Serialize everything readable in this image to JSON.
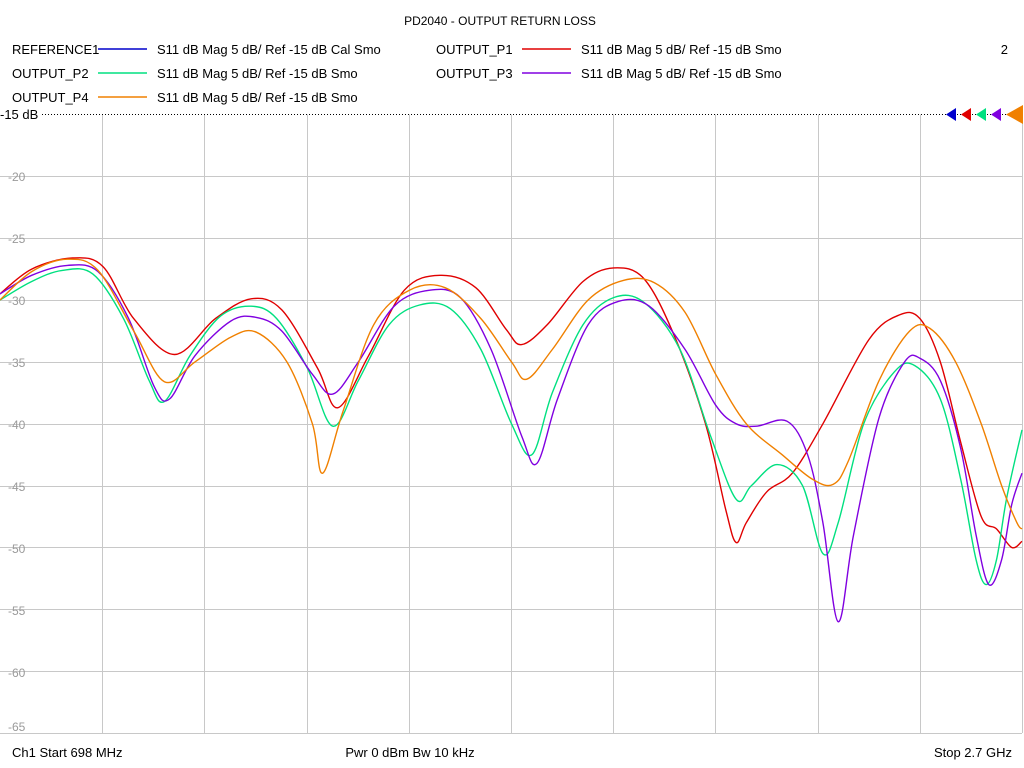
{
  "chart_data": {
    "type": "line",
    "title": "PD2040 - OUTPUT RETURN LOSS",
    "channel_number": "2",
    "reference_level_label": "-15 dB",
    "y_tick_labels": [
      "-20",
      "-25",
      "-30",
      "-35",
      "-40",
      "-45",
      "-50",
      "-55",
      "-60",
      "-65"
    ],
    "ylim": [
      -65,
      -15
    ],
    "xlim": [
      698,
      2700
    ],
    "x_unit": "MHz",
    "grid": true,
    "footer": {
      "start": "Ch1  Start  698 MHz",
      "power": "Pwr  0 dBm  Bw  10 kHz",
      "stop": "Stop  2.7 GHz"
    },
    "series": [
      {
        "name": "REFERENCE1",
        "descriptor": "S11  dB Mag  5 dB/ Ref -15 dB  Cal Smo",
        "color": "#0000cc",
        "points": []
      },
      {
        "name": "OUTPUT_P1",
        "descriptor": "S11  dB Mag  5 dB/ Ref -15 dB  Smo",
        "color": "#e00000",
        "points": [
          [
            698,
            -29.5
          ],
          [
            760,
            -27.5
          ],
          [
            840,
            -26.6
          ],
          [
            900,
            -27.3
          ],
          [
            960,
            -31.5
          ],
          [
            1040,
            -34.4
          ],
          [
            1120,
            -31.5
          ],
          [
            1190,
            -29.9
          ],
          [
            1250,
            -30.8
          ],
          [
            1320,
            -35.5
          ],
          [
            1360,
            -38.7
          ],
          [
            1420,
            -34.5
          ],
          [
            1490,
            -29.2
          ],
          [
            1560,
            -28.0
          ],
          [
            1630,
            -29.0
          ],
          [
            1690,
            -32.4
          ],
          [
            1720,
            -33.6
          ],
          [
            1770,
            -32.0
          ],
          [
            1840,
            -28.5
          ],
          [
            1900,
            -27.4
          ],
          [
            1960,
            -28.3
          ],
          [
            2020,
            -33.0
          ],
          [
            2080,
            -40.0
          ],
          [
            2120,
            -47.0
          ],
          [
            2140,
            -49.6
          ],
          [
            2160,
            -48.0
          ],
          [
            2200,
            -45.5
          ],
          [
            2250,
            -44.0
          ],
          [
            2310,
            -40.0
          ],
          [
            2400,
            -33.2
          ],
          [
            2460,
            -31.2
          ],
          [
            2500,
            -31.5
          ],
          [
            2540,
            -35.0
          ],
          [
            2580,
            -41.5
          ],
          [
            2620,
            -47.5
          ],
          [
            2650,
            -48.5
          ],
          [
            2680,
            -50.0
          ],
          [
            2700,
            -49.5
          ]
        ]
      },
      {
        "name": "OUTPUT_P2",
        "descriptor": "S11  dB Mag  5 dB/ Ref -15 dB  Smo",
        "color": "#00e080",
        "points": [
          [
            698,
            -30.0
          ],
          [
            760,
            -28.5
          ],
          [
            820,
            -27.6
          ],
          [
            880,
            -27.9
          ],
          [
            940,
            -31.5
          ],
          [
            990,
            -36.5
          ],
          [
            1020,
            -38.2
          ],
          [
            1070,
            -34.5
          ],
          [
            1130,
            -31.3
          ],
          [
            1190,
            -30.5
          ],
          [
            1240,
            -31.5
          ],
          [
            1300,
            -35.5
          ],
          [
            1350,
            -40.2
          ],
          [
            1400,
            -36.5
          ],
          [
            1460,
            -32.0
          ],
          [
            1520,
            -30.4
          ],
          [
            1580,
            -30.7
          ],
          [
            1640,
            -34.0
          ],
          [
            1700,
            -40.0
          ],
          [
            1740,
            -42.5
          ],
          [
            1780,
            -37.5
          ],
          [
            1840,
            -32.0
          ],
          [
            1900,
            -29.8
          ],
          [
            1960,
            -30.2
          ],
          [
            2030,
            -34.0
          ],
          [
            2090,
            -41.0
          ],
          [
            2140,
            -46.1
          ],
          [
            2170,
            -45.0
          ],
          [
            2220,
            -43.3
          ],
          [
            2270,
            -45.0
          ],
          [
            2310,
            -50.5
          ],
          [
            2340,
            -48.0
          ],
          [
            2390,
            -40.0
          ],
          [
            2450,
            -35.8
          ],
          [
            2490,
            -35.3
          ],
          [
            2540,
            -38.0
          ],
          [
            2580,
            -44.5
          ],
          [
            2610,
            -51.0
          ],
          [
            2630,
            -53.0
          ],
          [
            2650,
            -51.0
          ],
          [
            2670,
            -46.0
          ],
          [
            2700,
            -40.5
          ]
        ]
      },
      {
        "name": "OUTPUT_P3",
        "descriptor": "S11  dB Mag  5 dB/ Ref -15 dB  Smo",
        "color": "#8000e0",
        "points": [
          [
            698,
            -29.5
          ],
          [
            760,
            -28.0
          ],
          [
            830,
            -27.2
          ],
          [
            890,
            -27.7
          ],
          [
            950,
            -31.5
          ],
          [
            1000,
            -37.0
          ],
          [
            1030,
            -38.0
          ],
          [
            1080,
            -34.5
          ],
          [
            1150,
            -31.7
          ],
          [
            1200,
            -31.4
          ],
          [
            1250,
            -32.5
          ],
          [
            1310,
            -36.0
          ],
          [
            1350,
            -37.6
          ],
          [
            1400,
            -35.0
          ],
          [
            1470,
            -30.5
          ],
          [
            1540,
            -29.2
          ],
          [
            1600,
            -29.8
          ],
          [
            1660,
            -34.0
          ],
          [
            1720,
            -41.0
          ],
          [
            1750,
            -43.2
          ],
          [
            1790,
            -38.0
          ],
          [
            1850,
            -32.0
          ],
          [
            1910,
            -30.1
          ],
          [
            1970,
            -30.5
          ],
          [
            2040,
            -34.0
          ],
          [
            2100,
            -38.5
          ],
          [
            2140,
            -40.0
          ],
          [
            2180,
            -40.2
          ],
          [
            2240,
            -39.8
          ],
          [
            2280,
            -42.5
          ],
          [
            2310,
            -48.0
          ],
          [
            2340,
            -56.0
          ],
          [
            2370,
            -49.0
          ],
          [
            2420,
            -39.5
          ],
          [
            2470,
            -35.0
          ],
          [
            2500,
            -34.7
          ],
          [
            2540,
            -36.5
          ],
          [
            2580,
            -42.0
          ],
          [
            2610,
            -49.0
          ],
          [
            2635,
            -53.0
          ],
          [
            2660,
            -51.0
          ],
          [
            2680,
            -46.5
          ],
          [
            2700,
            -44.0
          ]
        ]
      },
      {
        "name": "OUTPUT_P4",
        "descriptor": "S11  dB Mag  5 dB/ Ref -15 dB  Smo",
        "color": "#f08000",
        "points": [
          [
            698,
            -30.0
          ],
          [
            760,
            -27.7
          ],
          [
            830,
            -26.7
          ],
          [
            890,
            -27.6
          ],
          [
            960,
            -32.5
          ],
          [
            1020,
            -36.6
          ],
          [
            1080,
            -35.0
          ],
          [
            1150,
            -33.0
          ],
          [
            1200,
            -32.6
          ],
          [
            1260,
            -35.0
          ],
          [
            1310,
            -40.0
          ],
          [
            1330,
            -44.0
          ],
          [
            1370,
            -39.0
          ],
          [
            1430,
            -32.0
          ],
          [
            1500,
            -29.2
          ],
          [
            1570,
            -29.0
          ],
          [
            1640,
            -31.5
          ],
          [
            1700,
            -35.0
          ],
          [
            1730,
            -36.4
          ],
          [
            1780,
            -34.0
          ],
          [
            1850,
            -30.0
          ],
          [
            1920,
            -28.4
          ],
          [
            1980,
            -28.6
          ],
          [
            2040,
            -31.0
          ],
          [
            2100,
            -36.0
          ],
          [
            2160,
            -40.0
          ],
          [
            2230,
            -42.5
          ],
          [
            2290,
            -44.5
          ],
          [
            2330,
            -44.9
          ],
          [
            2360,
            -43.0
          ],
          [
            2420,
            -36.5
          ],
          [
            2480,
            -32.5
          ],
          [
            2520,
            -32.3
          ],
          [
            2570,
            -35.0
          ],
          [
            2620,
            -40.0
          ],
          [
            2660,
            -45.0
          ],
          [
            2690,
            -48.0
          ],
          [
            2700,
            -48.5
          ]
        ]
      }
    ]
  }
}
